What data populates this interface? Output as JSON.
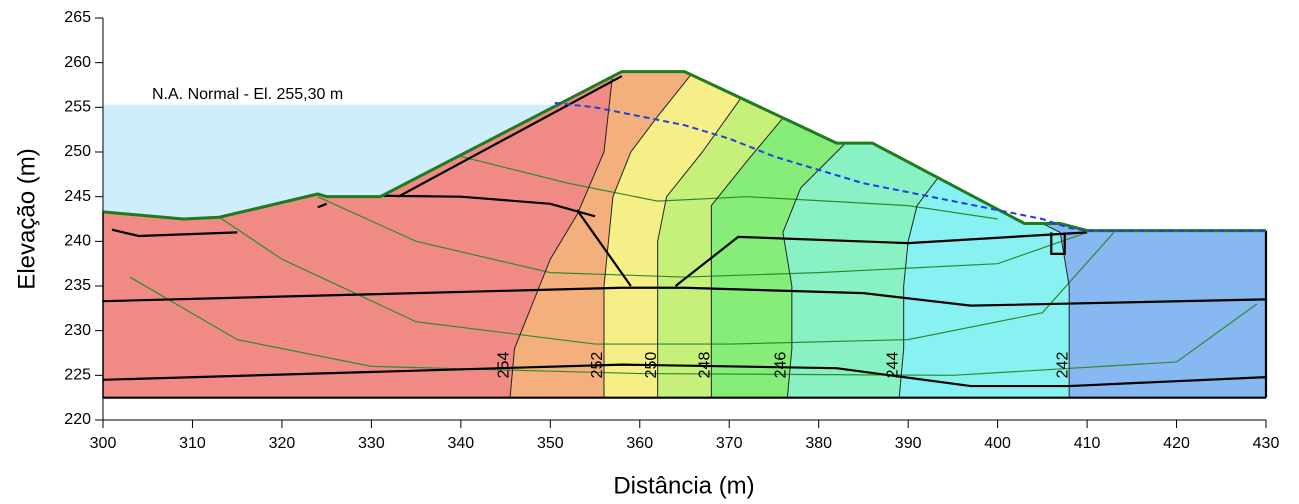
{
  "chart_data": {
    "type": "seepage-section",
    "xlabel": "Distância (m)",
    "ylabel": "Elevação (m)",
    "xlim": [
      300,
      430
    ],
    "ylim": [
      220,
      265
    ],
    "xticks": [
      300,
      310,
      320,
      330,
      340,
      350,
      360,
      370,
      380,
      390,
      400,
      410,
      420,
      430
    ],
    "yticks": [
      220,
      225,
      230,
      235,
      240,
      245,
      250,
      255,
      260,
      265
    ],
    "reservoir": {
      "label": "N.A. Normal - El. 255,30 m",
      "level": 255.3,
      "color": "#cdeefa"
    },
    "section": {
      "color": "#1e7b1e",
      "base": 222.5,
      "x": [
        300,
        309,
        313,
        324,
        325,
        331,
        358,
        365,
        366.5,
        382,
        386,
        403,
        407,
        410,
        430
      ],
      "y": [
        243.3,
        242.5,
        242.7,
        245.3,
        245,
        245,
        259,
        259,
        258.3,
        251,
        251,
        242,
        242,
        241.2,
        241.2
      ]
    },
    "phreatic_line": {
      "color": "#1f3fe0",
      "x": [
        350.5,
        355,
        360,
        365,
        370,
        375,
        380,
        385,
        390,
        395,
        400,
        405,
        408,
        410,
        430
      ],
      "y": [
        255.5,
        255,
        254,
        253,
        251.5,
        249.5,
        248,
        246.5,
        245.5,
        244.5,
        243.5,
        242.5,
        241.5,
        241.2,
        241.2
      ]
    },
    "zone_colors": [
      "#f08a84",
      "#f4b07c",
      "#f6ee86",
      "#c6f07a",
      "#86ee78",
      "#88f2c4",
      "#88f2f2",
      "#88b8f2"
    ],
    "equipotentials": [
      {
        "head": 254,
        "x": [
          357,
          356,
          353,
          350,
          348,
          346,
          345.5
        ],
        "y": [
          259,
          250,
          243,
          238,
          233,
          228,
          222.5
        ]
      },
      {
        "head": 252,
        "x": [
          366,
          362,
          359,
          357,
          356.5,
          356,
          356,
          356
        ],
        "y": [
          259,
          254,
          250,
          245,
          240,
          235,
          228,
          222.5
        ]
      },
      {
        "head": 250,
        "x": [
          372,
          367,
          363,
          362,
          362,
          362,
          362
        ],
        "y": [
          257,
          250,
          245,
          240,
          235,
          228,
          222.5
        ]
      },
      {
        "head": 248,
        "x": [
          377,
          372,
          368,
          368,
          368,
          368,
          368
        ],
        "y": [
          255,
          249,
          244,
          240,
          235,
          228,
          222.5
        ]
      },
      {
        "head": 246,
        "x": [
          384,
          378,
          376,
          377,
          377,
          376.5
        ],
        "y": [
          252,
          246,
          241,
          235,
          228,
          222.5
        ]
      },
      {
        "head": 244,
        "x": [
          394,
          391,
          390,
          389.5,
          389.5,
          389
        ],
        "y": [
          248,
          244,
          240,
          235,
          228,
          222.5
        ]
      },
      {
        "head": 242,
        "x": [
          404,
          407,
          407.5,
          408,
          408,
          408
        ],
        "y": [
          242.5,
          241,
          238,
          235,
          228,
          222.5
        ]
      }
    ],
    "flow_lines": [
      {
        "x": [
          313,
          320,
          335,
          355,
          370,
          390,
          405,
          413
        ],
        "y": [
          242.7,
          238,
          231,
          228.5,
          228.5,
          229,
          232,
          241
        ]
      },
      {
        "x": [
          324,
          335,
          350,
          365,
          380,
          400,
          410
        ],
        "y": [
          245,
          240,
          236.5,
          236,
          236.5,
          237.5,
          241
        ]
      },
      {
        "x": [
          340,
          352,
          362,
          372,
          390,
          400
        ],
        "y": [
          249.5,
          246.5,
          244.5,
          245,
          244,
          242.5
        ]
      },
      {
        "x": [
          303,
          315,
          330,
          360,
          395,
          420,
          429
        ],
        "y": [
          236,
          229,
          226,
          225.2,
          225,
          226.5,
          233
        ]
      }
    ],
    "boundaries": [
      {
        "x": [
          300,
          358,
          382,
          397,
          408,
          430
        ],
        "y": [
          224.5,
          226.2,
          225.8,
          223.8,
          223.8,
          224.8
        ]
      },
      {
        "x": [
          300,
          358,
          365,
          385,
          397,
          430
        ],
        "y": [
          233.3,
          234.8,
          234.8,
          234.2,
          232.8,
          233.5
        ]
      },
      {
        "x": [
          331,
          340,
          350,
          355
        ],
        "y": [
          245.1,
          245,
          244.2,
          242.8
        ]
      },
      {
        "x": [
          353,
          359
        ],
        "y": [
          243.5,
          235
        ]
      },
      {
        "x": [
          364,
          371,
          390,
          410
        ],
        "y": [
          235,
          240.5,
          239.8,
          241
        ]
      },
      {
        "x": [
          333,
          358
        ],
        "y": [
          245,
          258.5
        ]
      },
      {
        "x": [
          301,
          304,
          315
        ],
        "y": [
          241.3,
          240.6,
          241
        ]
      },
      {
        "x": [
          324,
          325
        ],
        "y": [
          243.8,
          244.2
        ]
      },
      {
        "x": [
          300,
          430
        ],
        "y": [
          222.5,
          222.5
        ]
      },
      {
        "x": [
          430,
          430
        ],
        "y": [
          222.5,
          241.2
        ]
      },
      {
        "x": [
          406,
          406,
          407.5,
          407.5
        ],
        "y": [
          241,
          238.6,
          238.6,
          241
        ]
      }
    ]
  }
}
